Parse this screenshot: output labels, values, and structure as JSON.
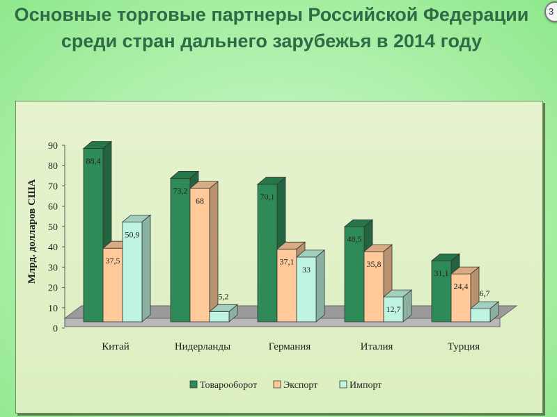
{
  "slide": {
    "title_line1": "Основные торговые партнеры Российской Федерации",
    "title_line2": "среди стран дальнего зарубежья в 2014 году",
    "slide_number": "3"
  },
  "chart_data": {
    "type": "bar",
    "ylabel": "Млрд. долларов США",
    "ylim": [
      0,
      90
    ],
    "yticks": [
      0,
      10,
      20,
      30,
      40,
      50,
      60,
      70,
      80,
      90
    ],
    "categories": [
      "Китай",
      "Нидерланды",
      "Германия",
      "Италия",
      "Турция"
    ],
    "series": [
      {
        "name": "Товарооборот",
        "color": "#2e8b57",
        "values": [
          88.4,
          73.2,
          70.1,
          48.5,
          31.1
        ],
        "labels": [
          "88,4",
          "73,2",
          "70,1",
          "48,5",
          "31,1"
        ]
      },
      {
        "name": "Экспорт",
        "color": "#ffc99a",
        "values": [
          37.5,
          68,
          37.1,
          35.8,
          24.4
        ],
        "labels": [
          "37,5",
          "68",
          "37,1",
          "35,8",
          "24,4"
        ]
      },
      {
        "name": "Импорт",
        "color": "#bff5e0",
        "values": [
          50.9,
          5.2,
          33,
          12.7,
          6.7
        ],
        "labels": [
          "50,9",
          "5,2",
          "33",
          "12,7",
          "6,7"
        ]
      }
    ],
    "grid": false,
    "legend_position": "bottom"
  }
}
